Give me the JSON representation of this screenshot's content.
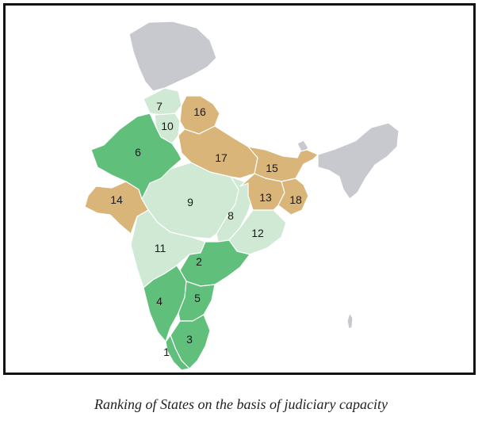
{
  "caption": "Ranking of States on the basis of judiciary capacity",
  "colors": {
    "dark_green": "#5fbf7b",
    "light_green": "#cfe9d4",
    "tan": "#d9b57a",
    "grey": "#c8c8cf"
  },
  "legend_tiers": {
    "dark_green": [
      "1",
      "2",
      "3",
      "4",
      "5",
      "6"
    ],
    "light_green": [
      "7",
      "8",
      "9",
      "10",
      "11",
      "12"
    ],
    "tan": [
      "13",
      "14",
      "15",
      "16",
      "17",
      "18"
    ]
  },
  "labels": {
    "r1": "1",
    "r2": "2",
    "r3": "3",
    "r4": "4",
    "r5": "5",
    "r6": "6",
    "r7": "7",
    "r8": "8",
    "r9": "9",
    "r10": "10",
    "r11": "11",
    "r12": "12",
    "r13": "13",
    "r14": "14",
    "r15": "15",
    "r16": "16",
    "r17": "17",
    "r18": "18"
  }
}
